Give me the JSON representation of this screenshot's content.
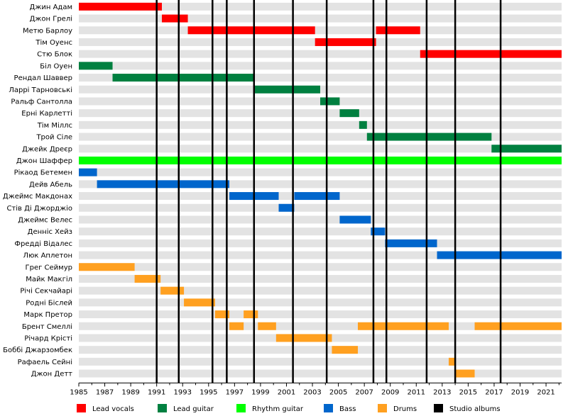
{
  "chart_data": {
    "type": "timeline",
    "x_range": [
      1985,
      2022.2
    ],
    "x_ticks": [
      "1985",
      "1987",
      "1989",
      "1991",
      "1993",
      "1995",
      "1997",
      "1999",
      "2001",
      "2003",
      "2005",
      "2007",
      "2009",
      "2011",
      "2013",
      "2015",
      "2017",
      "2019",
      "2021"
    ],
    "roles": {
      "vocals": {
        "label": "Lead vocals",
        "color": "#ff0000"
      },
      "lead": {
        "label": "Lead guitar",
        "color": "#008040"
      },
      "rhythm": {
        "label": "Rhythm guitar",
        "color": "#00ff00"
      },
      "bass": {
        "label": "Bass",
        "color": "#0066cc"
      },
      "drums": {
        "label": "Drums",
        "color": "#ffa020"
      },
      "albums": {
        "label": "Studio albums",
        "color": "#000000"
      }
    },
    "legend_order": [
      "vocals",
      "lead",
      "rhythm",
      "bass",
      "drums",
      "albums"
    ],
    "members": [
      {
        "name": "Джин Адам",
        "spans": [
          {
            "role": "vocals",
            "start": 1985.0,
            "end": 1991.4
          }
        ]
      },
      {
        "name": "Джон Грелі",
        "spans": [
          {
            "role": "vocals",
            "start": 1991.4,
            "end": 1993.4
          }
        ]
      },
      {
        "name": "Метю Барлоу",
        "spans": [
          {
            "role": "vocals",
            "start": 1993.4,
            "end": 2003.2
          },
          {
            "role": "vocals",
            "start": 2007.9,
            "end": 2011.3
          }
        ]
      },
      {
        "name": "Тім Оуенс",
        "spans": [
          {
            "role": "vocals",
            "start": 2003.2,
            "end": 2007.9
          }
        ]
      },
      {
        "name": "Стю Блок",
        "spans": [
          {
            "role": "vocals",
            "start": 2011.3,
            "end": 2022.2
          }
        ]
      },
      {
        "name": "Біл Оуен",
        "spans": [
          {
            "role": "lead",
            "start": 1985.0,
            "end": 1987.6
          }
        ]
      },
      {
        "name": "Рендал Шаввер",
        "spans": [
          {
            "role": "lead",
            "start": 1987.6,
            "end": 1998.5
          }
        ]
      },
      {
        "name": "Ларрі Тарновські",
        "spans": [
          {
            "role": "lead",
            "start": 1998.5,
            "end": 2003.6
          }
        ]
      },
      {
        "name": "Ральф Сантолла",
        "spans": [
          {
            "role": "lead",
            "start": 2003.6,
            "end": 2005.1
          }
        ]
      },
      {
        "name": "Ерні Карлетті",
        "spans": [
          {
            "role": "lead",
            "start": 2005.1,
            "end": 2006.6
          }
        ]
      },
      {
        "name": "Тім Міллс",
        "spans": [
          {
            "role": "lead",
            "start": 2006.6,
            "end": 2007.2
          }
        ]
      },
      {
        "name": "Трой Сіле",
        "spans": [
          {
            "role": "lead",
            "start": 2007.2,
            "end": 2016.8
          }
        ]
      },
      {
        "name": "Джейк Дреєр",
        "spans": [
          {
            "role": "lead",
            "start": 2016.8,
            "end": 2022.2
          }
        ]
      },
      {
        "name": "Джон Шаффер",
        "spans": [
          {
            "role": "rhythm",
            "start": 1985.0,
            "end": 2022.2
          }
        ]
      },
      {
        "name": "Рікаод Бетемен",
        "spans": [
          {
            "role": "bass",
            "start": 1985.0,
            "end": 1986.4
          }
        ]
      },
      {
        "name": "Дейв Абель",
        "spans": [
          {
            "role": "bass",
            "start": 1986.4,
            "end": 1996.6
          }
        ]
      },
      {
        "name": "Джеймс Макдонах",
        "spans": [
          {
            "role": "bass",
            "start": 1996.6,
            "end": 2000.4
          },
          {
            "role": "bass",
            "start": 2001.6,
            "end": 2005.1
          }
        ]
      },
      {
        "name": "Стів Ді Джорджіо",
        "spans": [
          {
            "role": "bass",
            "start": 2000.4,
            "end": 2001.6
          }
        ]
      },
      {
        "name": "Джеймс Велес",
        "spans": [
          {
            "role": "bass",
            "start": 2005.1,
            "end": 2007.5
          }
        ]
      },
      {
        "name": "Денніс Хейз",
        "spans": [
          {
            "role": "bass",
            "start": 2007.5,
            "end": 2008.6
          }
        ]
      },
      {
        "name": "Фредді Відалес",
        "spans": [
          {
            "role": "bass",
            "start": 2008.6,
            "end": 2012.6
          }
        ]
      },
      {
        "name": "Люк Аплетон",
        "spans": [
          {
            "role": "bass",
            "start": 2012.6,
            "end": 2022.2
          }
        ]
      },
      {
        "name": "Грег Сеймур",
        "spans": [
          {
            "role": "drums",
            "start": 1985.0,
            "end": 1989.3
          }
        ]
      },
      {
        "name": "Майк Макгіл",
        "spans": [
          {
            "role": "drums",
            "start": 1989.3,
            "end": 1991.3
          }
        ]
      },
      {
        "name": "Річі Секчайарі",
        "spans": [
          {
            "role": "drums",
            "start": 1991.3,
            "end": 1993.1
          }
        ]
      },
      {
        "name": "Родні Біслей",
        "spans": [
          {
            "role": "drums",
            "start": 1993.1,
            "end": 1995.5
          }
        ]
      },
      {
        "name": "Марк Претор",
        "spans": [
          {
            "role": "drums",
            "start": 1995.5,
            "end": 1996.6
          },
          {
            "role": "drums",
            "start": 1997.7,
            "end": 1998.8
          }
        ]
      },
      {
        "name": "Брент Смеллі",
        "spans": [
          {
            "role": "drums",
            "start": 1996.6,
            "end": 1997.7
          },
          {
            "role": "drums",
            "start": 1998.8,
            "end": 2000.2
          },
          {
            "role": "drums",
            "start": 2006.5,
            "end": 2013.5
          },
          {
            "role": "drums",
            "start": 2015.5,
            "end": 2022.2
          }
        ]
      },
      {
        "name": "Річард Крісті",
        "spans": [
          {
            "role": "drums",
            "start": 2000.2,
            "end": 2004.5
          }
        ]
      },
      {
        "name": "Боббі Джарзомбек",
        "spans": [
          {
            "role": "drums",
            "start": 2004.5,
            "end": 2006.5
          }
        ]
      },
      {
        "name": "Рафаель Сейні",
        "spans": [
          {
            "role": "drums",
            "start": 2013.5,
            "end": 2014.0
          }
        ]
      },
      {
        "name": "Джон Детт",
        "spans": [
          {
            "role": "drums",
            "start": 2014.0,
            "end": 2015.5
          }
        ]
      }
    ],
    "albums": [
      1991.0,
      1992.7,
      1995.3,
      1996.4,
      1998.5,
      2001.5,
      2004.1,
      2007.7,
      2008.7,
      2011.8,
      2014.0,
      2017.5
    ]
  }
}
